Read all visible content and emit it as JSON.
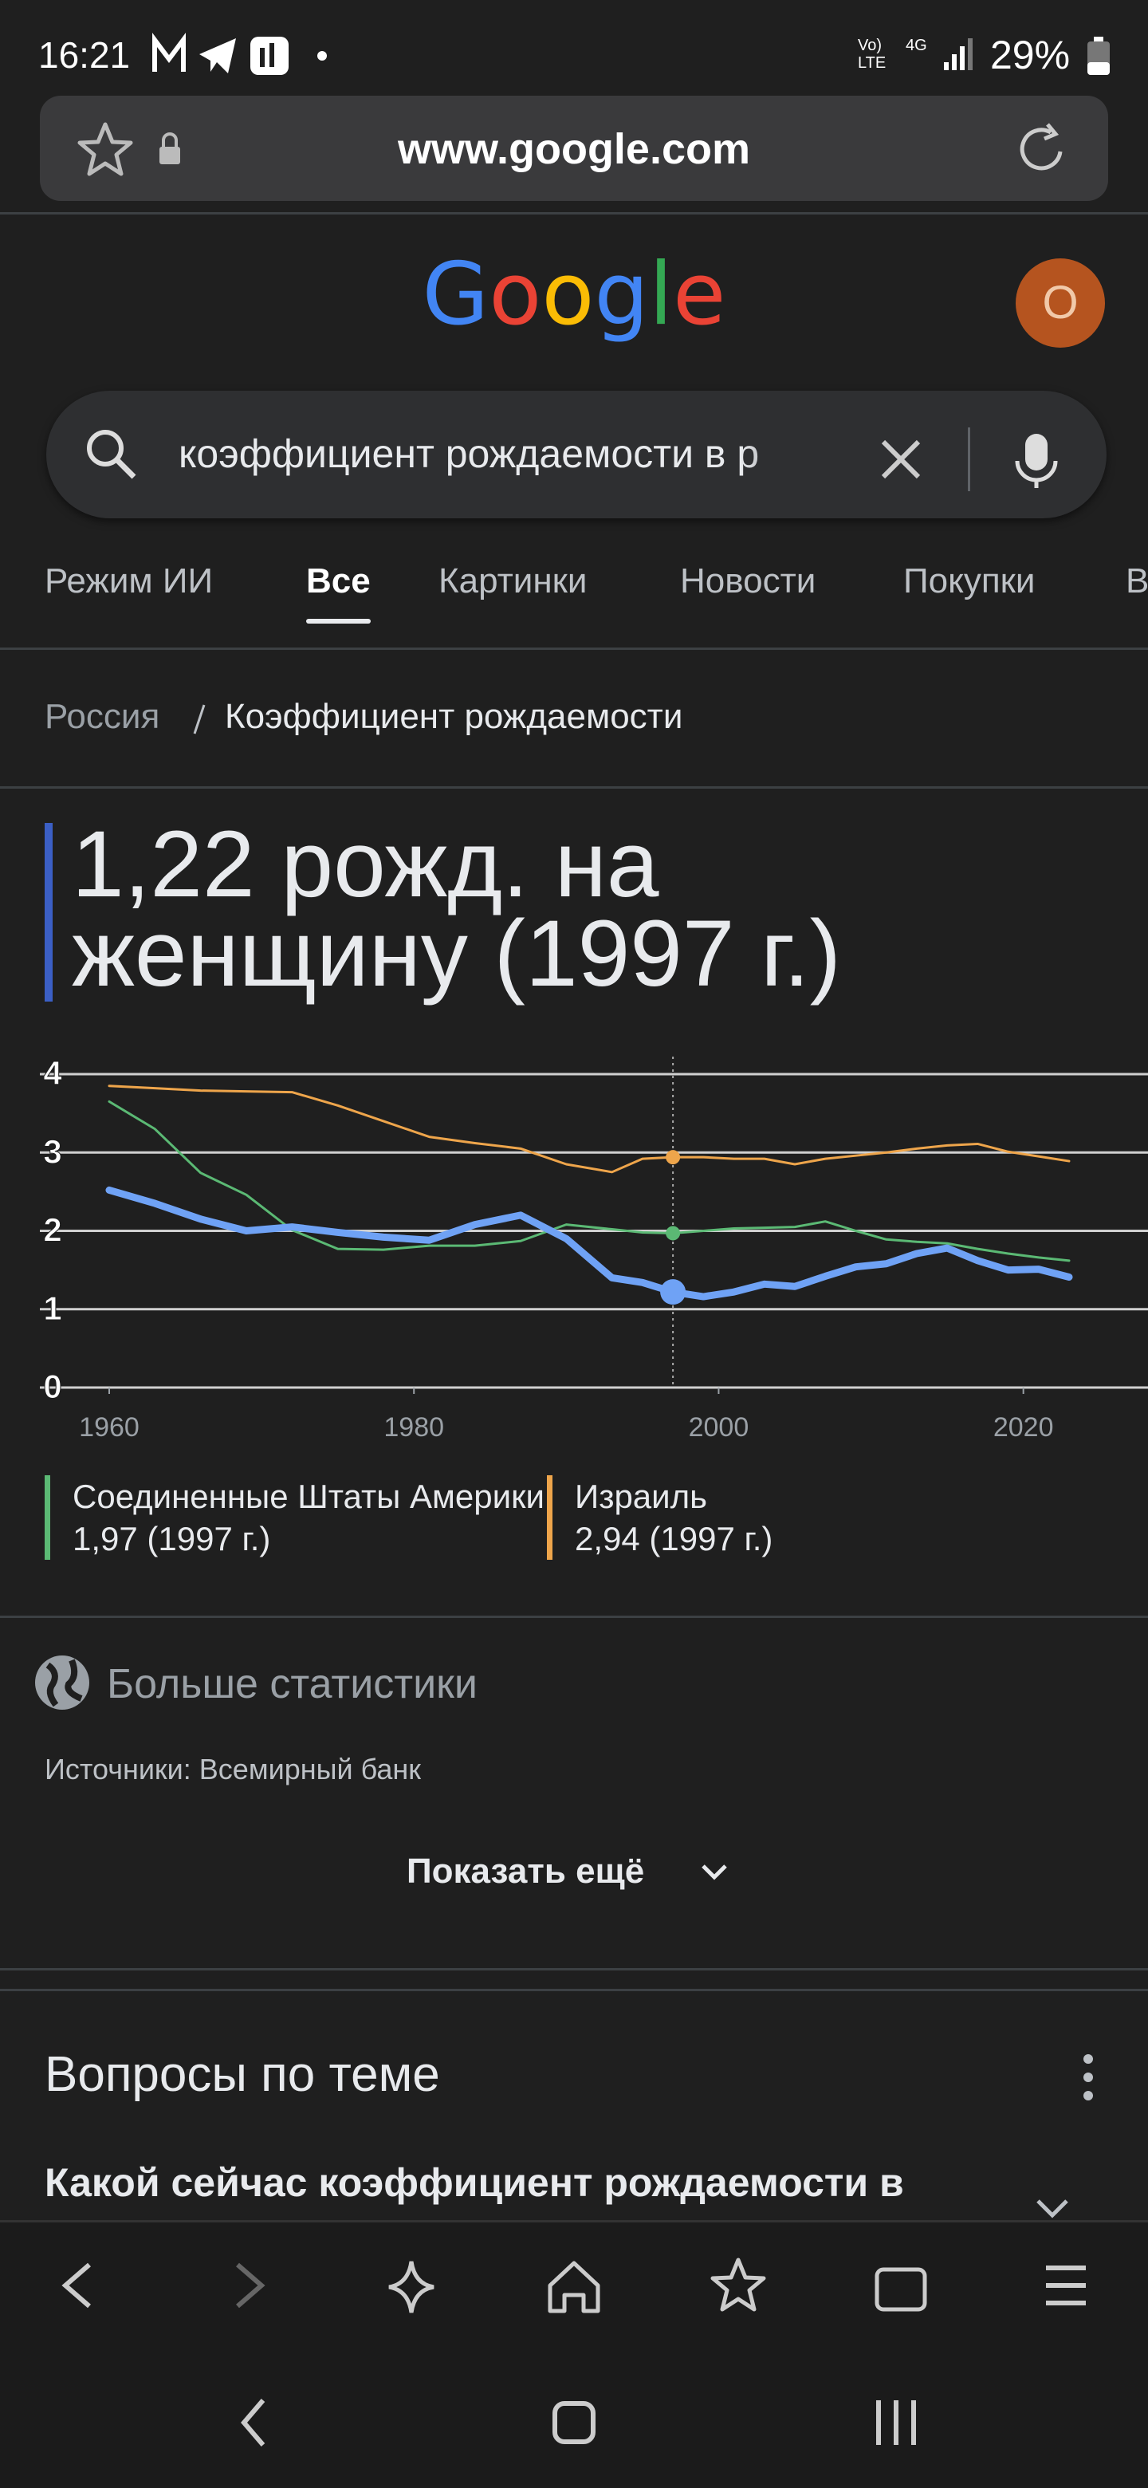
{
  "status_bar": {
    "time": "16:21",
    "volte": "Vo) LTE",
    "network": "4G",
    "battery": "29%"
  },
  "address_bar": {
    "url": "www.google.com"
  },
  "logo": "Google",
  "avatar": "О",
  "search": {
    "query": "коэффициент рождаемости в р"
  },
  "tabs": [
    "Режим ИИ",
    "Все",
    "Картинки",
    "Новости",
    "Покупки",
    "В"
  ],
  "active_tab": 1,
  "breadcrumb": [
    "Россия",
    "Коэффициент рождаемости"
  ],
  "headline": "1,22 рожд. на женщину (1997 г.)",
  "chart_data": {
    "type": "line",
    "x": [
      1960,
      1963,
      1966,
      1969,
      1972,
      1975,
      1978,
      1981,
      1984,
      1987,
      1990,
      1993,
      1995,
      1997,
      1999,
      2001,
      2003,
      2005,
      2007,
      2009,
      2011,
      2013,
      2015,
      2017,
      2019,
      2021,
      2023
    ],
    "series": [
      {
        "color": "#6fa2f5",
        "values": [
          2.52,
          2.35,
          2.15,
          2.0,
          2.05,
          1.98,
          1.92,
          1.88,
          2.08,
          2.2,
          1.9,
          1.4,
          1.34,
          1.22,
          1.16,
          1.22,
          1.32,
          1.29,
          1.42,
          1.54,
          1.58,
          1.71,
          1.78,
          1.62,
          1.5,
          1.51,
          1.41
        ]
      },
      {
        "name": "Соединенные Штаты Америки",
        "highlight_label": "1,97 (1997 г.)",
        "color": "#5bb974",
        "values": [
          3.65,
          3.3,
          2.74,
          2.46,
          2.01,
          1.77,
          1.76,
          1.81,
          1.81,
          1.87,
          2.08,
          2.02,
          1.98,
          1.97,
          2.0,
          2.03,
          2.04,
          2.05,
          2.12,
          2.0,
          1.89,
          1.86,
          1.84,
          1.77,
          1.71,
          1.66,
          1.62
        ]
      },
      {
        "name": "Израиль",
        "highlight_label": "2,94 (1997 г.)",
        "color": "#eea54b",
        "values": [
          3.85,
          3.82,
          3.79,
          3.78,
          3.77,
          3.6,
          3.4,
          3.2,
          3.12,
          3.05,
          2.85,
          2.75,
          2.92,
          2.94,
          2.94,
          2.92,
          2.92,
          2.85,
          2.92,
          2.96,
          3.0,
          3.05,
          3.09,
          3.11,
          3.01,
          2.95,
          2.89
        ]
      }
    ],
    "highlight_x": 1997,
    "xlim": [
      1960,
      2023
    ],
    "xticks": [
      1960,
      1980,
      2000,
      2020
    ],
    "ylim": [
      0,
      4
    ],
    "yticks": [
      0,
      1,
      2,
      3,
      4
    ],
    "grid": true
  },
  "more_stats": "Больше статистики",
  "sources": "Источники: Всемирный банк",
  "show_more": "Показать ещё",
  "related": {
    "title": "Вопросы по теме",
    "questions": [
      "Какой сейчас коэффициент рождаемости в"
    ]
  }
}
